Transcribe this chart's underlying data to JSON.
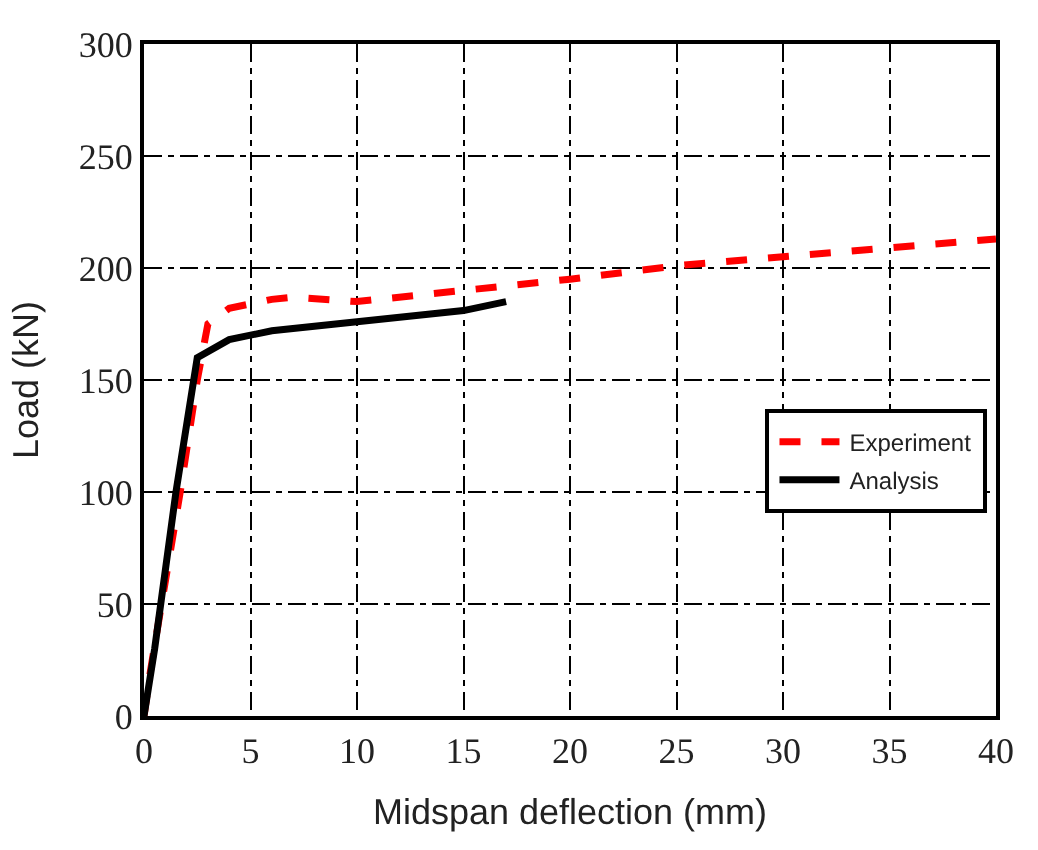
{
  "chart_data": {
    "type": "line",
    "xlabel": "Midspan deflection (mm)",
    "ylabel": "Load (kN)",
    "xlim": [
      0,
      40
    ],
    "xticks": [
      0,
      5,
      10,
      15,
      20,
      25,
      30,
      35,
      40
    ],
    "ylim": [
      0,
      300
    ],
    "yticks": [
      0,
      50,
      100,
      150,
      200,
      250,
      300
    ],
    "grid": true,
    "legend": "right",
    "marker": "none",
    "series": [
      {
        "name": "Experiment",
        "color": "#ff0000",
        "line_style": "dashed",
        "x": [
          0,
          0.3,
          1,
          1.7,
          2.5,
          3,
          4,
          6,
          7,
          10,
          15,
          20,
          25,
          30,
          35,
          40
        ],
        "values": [
          0,
          20,
          60,
          100,
          150,
          175,
          182,
          186,
          187,
          185,
          190,
          195,
          201,
          205,
          209,
          213
        ]
      },
      {
        "name": "Analysis",
        "color": "#000000",
        "line_style": "solid",
        "x": [
          0,
          0.5,
          1.5,
          2.5,
          4,
          6,
          10,
          15,
          17
        ],
        "values": [
          0,
          30,
          100,
          160,
          168,
          172,
          176,
          181,
          185
        ]
      }
    ]
  }
}
